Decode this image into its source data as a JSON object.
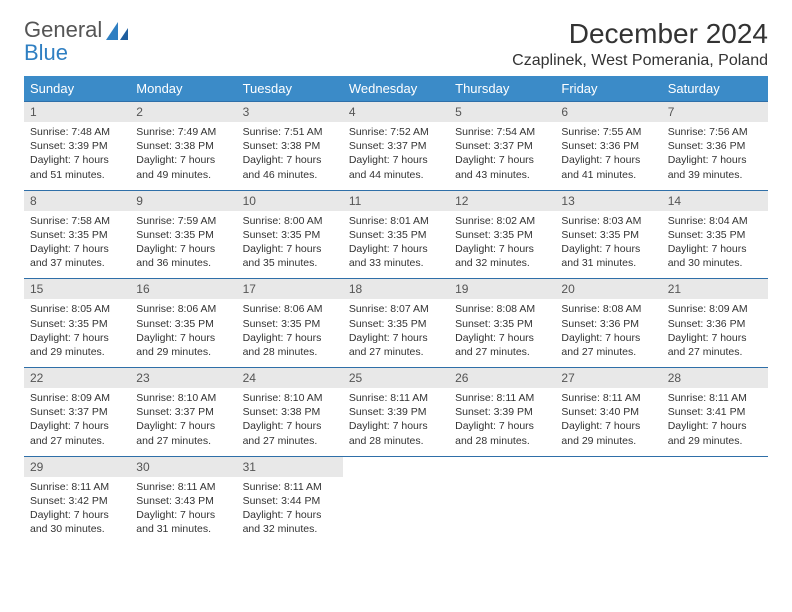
{
  "logo": {
    "line1": "General",
    "line2": "Blue"
  },
  "title": "December 2024",
  "location": "Czaplinek, West Pomerania, Poland",
  "colors": {
    "header_bg": "#3b8bc8",
    "header_text": "#ffffff",
    "daynum_bg": "#e8e8e8",
    "rule": "#2f6fa8",
    "logo_accent": "#2f7fc2"
  },
  "weekdays": [
    "Sunday",
    "Monday",
    "Tuesday",
    "Wednesday",
    "Thursday",
    "Friday",
    "Saturday"
  ],
  "days": [
    {
      "n": "1",
      "sunrise": "7:48 AM",
      "sunset": "3:39 PM",
      "daylight": "7 hours and 51 minutes."
    },
    {
      "n": "2",
      "sunrise": "7:49 AM",
      "sunset": "3:38 PM",
      "daylight": "7 hours and 49 minutes."
    },
    {
      "n": "3",
      "sunrise": "7:51 AM",
      "sunset": "3:38 PM",
      "daylight": "7 hours and 46 minutes."
    },
    {
      "n": "4",
      "sunrise": "7:52 AM",
      "sunset": "3:37 PM",
      "daylight": "7 hours and 44 minutes."
    },
    {
      "n": "5",
      "sunrise": "7:54 AM",
      "sunset": "3:37 PM",
      "daylight": "7 hours and 43 minutes."
    },
    {
      "n": "6",
      "sunrise": "7:55 AM",
      "sunset": "3:36 PM",
      "daylight": "7 hours and 41 minutes."
    },
    {
      "n": "7",
      "sunrise": "7:56 AM",
      "sunset": "3:36 PM",
      "daylight": "7 hours and 39 minutes."
    },
    {
      "n": "8",
      "sunrise": "7:58 AM",
      "sunset": "3:35 PM",
      "daylight": "7 hours and 37 minutes."
    },
    {
      "n": "9",
      "sunrise": "7:59 AM",
      "sunset": "3:35 PM",
      "daylight": "7 hours and 36 minutes."
    },
    {
      "n": "10",
      "sunrise": "8:00 AM",
      "sunset": "3:35 PM",
      "daylight": "7 hours and 35 minutes."
    },
    {
      "n": "11",
      "sunrise": "8:01 AM",
      "sunset": "3:35 PM",
      "daylight": "7 hours and 33 minutes."
    },
    {
      "n": "12",
      "sunrise": "8:02 AM",
      "sunset": "3:35 PM",
      "daylight": "7 hours and 32 minutes."
    },
    {
      "n": "13",
      "sunrise": "8:03 AM",
      "sunset": "3:35 PM",
      "daylight": "7 hours and 31 minutes."
    },
    {
      "n": "14",
      "sunrise": "8:04 AM",
      "sunset": "3:35 PM",
      "daylight": "7 hours and 30 minutes."
    },
    {
      "n": "15",
      "sunrise": "8:05 AM",
      "sunset": "3:35 PM",
      "daylight": "7 hours and 29 minutes."
    },
    {
      "n": "16",
      "sunrise": "8:06 AM",
      "sunset": "3:35 PM",
      "daylight": "7 hours and 29 minutes."
    },
    {
      "n": "17",
      "sunrise": "8:06 AM",
      "sunset": "3:35 PM",
      "daylight": "7 hours and 28 minutes."
    },
    {
      "n": "18",
      "sunrise": "8:07 AM",
      "sunset": "3:35 PM",
      "daylight": "7 hours and 27 minutes."
    },
    {
      "n": "19",
      "sunrise": "8:08 AM",
      "sunset": "3:35 PM",
      "daylight": "7 hours and 27 minutes."
    },
    {
      "n": "20",
      "sunrise": "8:08 AM",
      "sunset": "3:36 PM",
      "daylight": "7 hours and 27 minutes."
    },
    {
      "n": "21",
      "sunrise": "8:09 AM",
      "sunset": "3:36 PM",
      "daylight": "7 hours and 27 minutes."
    },
    {
      "n": "22",
      "sunrise": "8:09 AM",
      "sunset": "3:37 PM",
      "daylight": "7 hours and 27 minutes."
    },
    {
      "n": "23",
      "sunrise": "8:10 AM",
      "sunset": "3:37 PM",
      "daylight": "7 hours and 27 minutes."
    },
    {
      "n": "24",
      "sunrise": "8:10 AM",
      "sunset": "3:38 PM",
      "daylight": "7 hours and 27 minutes."
    },
    {
      "n": "25",
      "sunrise": "8:11 AM",
      "sunset": "3:39 PM",
      "daylight": "7 hours and 28 minutes."
    },
    {
      "n": "26",
      "sunrise": "8:11 AM",
      "sunset": "3:39 PM",
      "daylight": "7 hours and 28 minutes."
    },
    {
      "n": "27",
      "sunrise": "8:11 AM",
      "sunset": "3:40 PM",
      "daylight": "7 hours and 29 minutes."
    },
    {
      "n": "28",
      "sunrise": "8:11 AM",
      "sunset": "3:41 PM",
      "daylight": "7 hours and 29 minutes."
    },
    {
      "n": "29",
      "sunrise": "8:11 AM",
      "sunset": "3:42 PM",
      "daylight": "7 hours and 30 minutes."
    },
    {
      "n": "30",
      "sunrise": "8:11 AM",
      "sunset": "3:43 PM",
      "daylight": "7 hours and 31 minutes."
    },
    {
      "n": "31",
      "sunrise": "8:11 AM",
      "sunset": "3:44 PM",
      "daylight": "7 hours and 32 minutes."
    }
  ],
  "labels": {
    "sunrise": "Sunrise:",
    "sunset": "Sunset:",
    "daylight": "Daylight:"
  }
}
